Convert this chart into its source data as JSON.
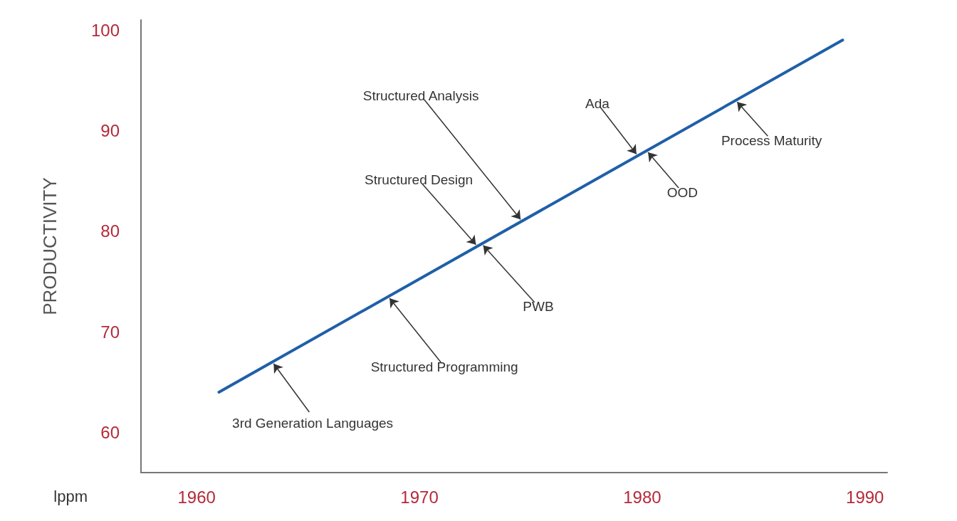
{
  "chart_data": {
    "type": "line",
    "xlabel": "lppm",
    "ylabel": "PRODUCTIVITY",
    "x": [
      1961,
      1989
    ],
    "series": [
      {
        "color": "#1f5fa8",
        "values": [
          64,
          99
        ]
      }
    ],
    "xlim": [
      1957.5,
      1991
    ],
    "xticks": [
      1960,
      1970,
      1980,
      1990
    ],
    "ylim": [
      56,
      101
    ],
    "yticks": [
      60,
      70,
      80,
      90,
      100
    ],
    "grid": false,
    "marker": "none",
    "line_style": "solid",
    "annotations": [
      {
        "text": "3rd Generation Languages",
        "x": 1963.4,
        "y": 67
      },
      {
        "text": "Structured Programming",
        "x": 1968.6,
        "y": 73.5
      },
      {
        "text": "PWB",
        "x": 1972.8,
        "y": 78.75
      },
      {
        "text": "Structured Design",
        "x": 1972.6,
        "y": 78.5
      },
      {
        "text": "Structured Analysis",
        "x": 1974.6,
        "y": 81
      },
      {
        "text": "OOD",
        "x": 1980.2,
        "y": 88
      },
      {
        "text": "Ada",
        "x": 1979.8,
        "y": 87.5
      },
      {
        "text": "Process Maturity",
        "x": 1984.2,
        "y": 93
      }
    ]
  }
}
